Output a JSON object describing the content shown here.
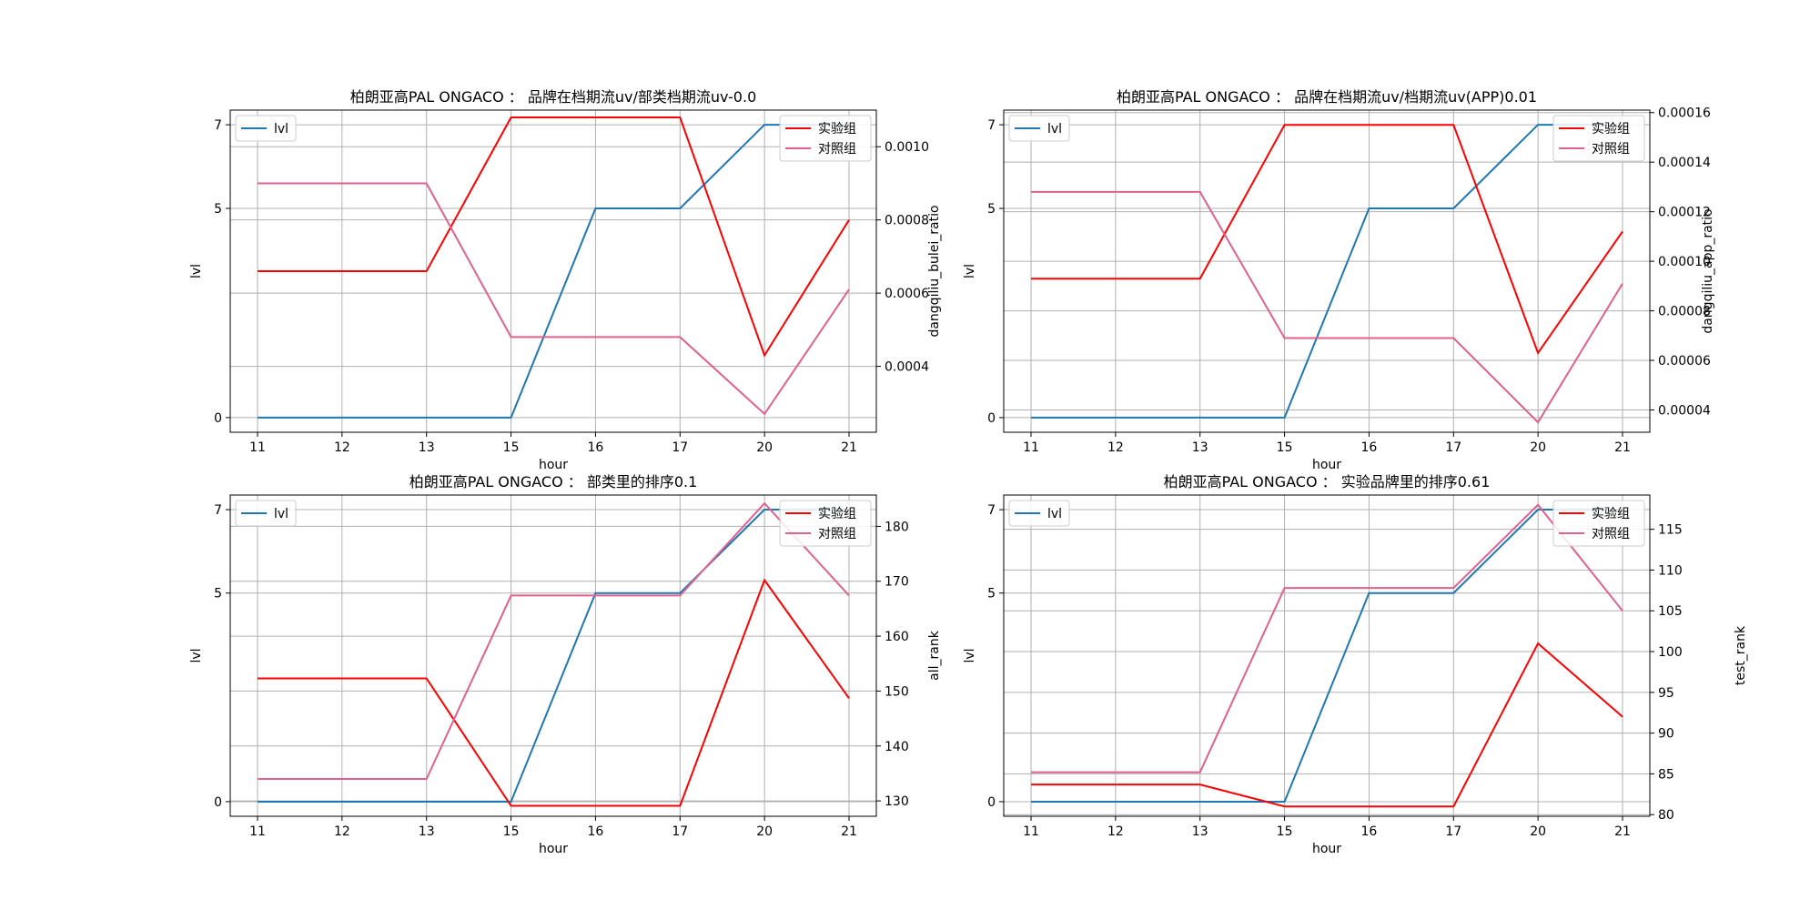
{
  "chart_data": [
    {
      "type": "line",
      "title": "柏朗亚高PAL ONGACO ： 品牌在档期流uv/部类档期流uv-0.0",
      "xlabel": "hour",
      "ylabel": "lvl",
      "y2label": "dangqiliu_bulei_ratio",
      "categories": [
        "11",
        "12",
        "13",
        "15",
        "16",
        "17",
        "20",
        "21"
      ],
      "ylim": [
        -0.35,
        7.35
      ],
      "yticks": [
        "0",
        "5",
        "7"
      ],
      "y2lim": [
        0.00022,
        0.0011
      ],
      "y2ticks": [
        "0.0004",
        "0.0006",
        "0.0008",
        "0.0010"
      ],
      "series_left": [
        {
          "name": "lvl",
          "color": "#1f77b4",
          "values": [
            0,
            0,
            0,
            0,
            5,
            5,
            7,
            7
          ]
        }
      ],
      "series_right": [
        {
          "name": "实验组",
          "color": "#ff0000",
          "values": [
            0.00066,
            0.00066,
            0.00066,
            0.00108,
            0.00108,
            0.00108,
            0.00043,
            0.0008
          ]
        },
        {
          "name": "对照组",
          "color": "#e0608f",
          "values": [
            0.0009,
            0.0009,
            0.0009,
            0.00048,
            0.00048,
            0.00048,
            0.00027,
            0.00061
          ]
        }
      ],
      "legend_left": "top-left",
      "legend_right": "top-right",
      "grid": true
    },
    {
      "type": "line",
      "title": "柏朗亚高PAL ONGACO ： 品牌在档期流uv/档期流uv(APP)0.01",
      "xlabel": "hour",
      "ylabel": "lvl",
      "y2label": "dangqiliu_app_ratio",
      "categories": [
        "11",
        "12",
        "13",
        "15",
        "16",
        "17",
        "20",
        "21"
      ],
      "ylim": [
        -0.35,
        7.35
      ],
      "yticks": [
        "0",
        "5",
        "7"
      ],
      "y2lim": [
        3.1e-05,
        0.000161
      ],
      "y2ticks": [
        "0.00004",
        "0.00006",
        "0.00008",
        "0.00010",
        "0.00012",
        "0.00014",
        "0.00016"
      ],
      "series_left": [
        {
          "name": "lvl",
          "color": "#1f77b4",
          "values": [
            0,
            0,
            0,
            0,
            5,
            5,
            7,
            7
          ]
        }
      ],
      "series_right": [
        {
          "name": "实验组",
          "color": "#ff0000",
          "values": [
            9.3e-05,
            9.3e-05,
            9.3e-05,
            0.000155,
            0.000155,
            0.000155,
            6.3e-05,
            0.000112
          ]
        },
        {
          "name": "对照组",
          "color": "#e0608f",
          "values": [
            0.000128,
            0.000128,
            0.000128,
            6.9e-05,
            6.9e-05,
            6.9e-05,
            3.5e-05,
            9.1e-05
          ]
        }
      ],
      "legend_left": "top-left",
      "legend_right": "top-right",
      "grid": true
    },
    {
      "type": "line",
      "title": "柏朗亚高PAL ONGACO ： 部类里的排序0.1",
      "xlabel": "hour",
      "ylabel": "lvl",
      "y2label": "all_rank",
      "categories": [
        "11",
        "12",
        "13",
        "15",
        "16",
        "17",
        "20",
        "21"
      ],
      "ylim": [
        -0.35,
        7.35
      ],
      "yticks": [
        "0",
        "5",
        "7"
      ],
      "y2lim": [
        127.2,
        185.7
      ],
      "y2ticks": [
        "130",
        "140",
        "150",
        "160",
        "170",
        "180"
      ],
      "series_left": [
        {
          "name": "lvl",
          "color": "#1f77b4",
          "values": [
            0,
            0,
            0,
            0,
            5,
            5,
            7,
            7
          ]
        }
      ],
      "series_right": [
        {
          "name": "实验组",
          "color": "#ff0000",
          "values": [
            152.3,
            152.3,
            152.3,
            129.1,
            129.1,
            129.1,
            170.2,
            148.7
          ]
        },
        {
          "name": "对照组",
          "color": "#e0608f",
          "values": [
            134,
            134,
            134,
            167.4,
            167.4,
            167.4,
            184.2,
            167.4
          ]
        }
      ],
      "legend_left": "top-left",
      "legend_right": "top-right",
      "grid": true
    },
    {
      "type": "line",
      "title": "柏朗亚高PAL ONGACO ： 实验品牌里的排序0.61",
      "xlabel": "hour",
      "ylabel": "lvl",
      "y2label": "test_rank",
      "categories": [
        "11",
        "12",
        "13",
        "15",
        "16",
        "17",
        "20",
        "21"
      ],
      "ylim": [
        -0.35,
        7.35
      ],
      "yticks": [
        "0",
        "5",
        "7"
      ],
      "y2lim": [
        79.8,
        119.2
      ],
      "y2ticks": [
        "80",
        "85",
        "90",
        "95",
        "100",
        "105",
        "110",
        "115"
      ],
      "series_left": [
        {
          "name": "lvl",
          "color": "#1f77b4",
          "values": [
            0,
            0,
            0,
            0,
            5,
            5,
            7,
            7
          ]
        }
      ],
      "series_right": [
        {
          "name": "实验组",
          "color": "#ff0000",
          "values": [
            83.7,
            83.7,
            83.7,
            81,
            81,
            81,
            101,
            92
          ]
        },
        {
          "name": "对照组",
          "color": "#e0608f",
          "values": [
            85.2,
            85.2,
            85.2,
            107.8,
            107.8,
            107.8,
            118,
            105
          ]
        }
      ],
      "legend_left": "top-left",
      "legend_right": "top-right",
      "grid": true
    }
  ]
}
